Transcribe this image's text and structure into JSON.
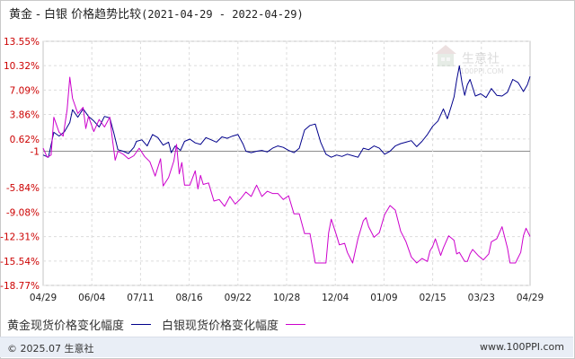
{
  "header": {
    "title": "黄金 - 白银 价格趋势比较",
    "date_range": "(2021-04-29 - 2022-04-29)"
  },
  "watermark": {
    "brand": "生意社",
    "url": "100PPI.COM"
  },
  "legend": [
    {
      "label": "黄金现货价格变化幅度",
      "color": "#00008b"
    },
    {
      "label": "白银现货价格变化幅度",
      "color": "#cc00cc"
    }
  ],
  "footer": {
    "copyright": "© 2025.07 生意社",
    "site": "www.100PPI.com"
  },
  "chart_data": {
    "type": "line",
    "x_tick_labels": [
      "04/29",
      "06/04",
      "07/11",
      "08/16",
      "09/22",
      "10/28",
      "12/04",
      "01/09",
      "02/15",
      "03/23",
      "04/29"
    ],
    "y_tick_labels": [
      "13.55%",
      "10.32%",
      "7.09%",
      "3.86%",
      "0.62%",
      "-1",
      "-5.84%",
      "-9.08%",
      "-12.31%",
      "-15.54%",
      "-18.77%"
    ],
    "y_tick_values": [
      13.55,
      10.32,
      7.09,
      3.86,
      0.62,
      -1,
      -5.84,
      -9.08,
      -12.31,
      -15.54,
      -18.77
    ],
    "ylim": [
      -18.77,
      13.55
    ],
    "xlim": [
      0,
      365
    ],
    "grid": true,
    "series": [
      {
        "name": "黄金现货价格变化幅度",
        "color": "#00008b",
        "points": [
          [
            0,
            -1.5
          ],
          [
            4,
            -1.8
          ],
          [
            8,
            1.5
          ],
          [
            12,
            1.0
          ],
          [
            16,
            1.6
          ],
          [
            20,
            2.8
          ],
          [
            22,
            4.5
          ],
          [
            26,
            3.5
          ],
          [
            30,
            4.6
          ],
          [
            34,
            3.6
          ],
          [
            38,
            3.0
          ],
          [
            42,
            2.2
          ],
          [
            46,
            3.6
          ],
          [
            50,
            3.4
          ],
          [
            53,
            1.4
          ],
          [
            56,
            -0.8
          ],
          [
            60,
            -1.0
          ],
          [
            64,
            -1.3
          ],
          [
            68,
            -0.5
          ],
          [
            70,
            0.3
          ],
          [
            74,
            0.5
          ],
          [
            78,
            -0.3
          ],
          [
            82,
            1.2
          ],
          [
            86,
            0.8
          ],
          [
            90,
            -0.2
          ],
          [
            94,
            0.2
          ],
          [
            96,
            -1.2
          ],
          [
            99,
            -0.3
          ],
          [
            103,
            -0.9
          ],
          [
            106,
            0.3
          ],
          [
            110,
            0.6
          ],
          [
            114,
            0.1
          ],
          [
            118,
            -0.1
          ],
          [
            122,
            0.8
          ],
          [
            126,
            0.5
          ],
          [
            130,
            0.2
          ],
          [
            134,
            0.9
          ],
          [
            138,
            0.7
          ],
          [
            142,
            1.0
          ],
          [
            146,
            1.2
          ],
          [
            150,
            -0.1
          ],
          [
            152,
            -1.0
          ],
          [
            156,
            -1.2
          ],
          [
            160,
            -1.0
          ],
          [
            164,
            -0.9
          ],
          [
            168,
            -1.1
          ],
          [
            172,
            -0.6
          ],
          [
            176,
            -0.3
          ],
          [
            180,
            -0.5
          ],
          [
            184,
            -0.9
          ],
          [
            188,
            -1.2
          ],
          [
            192,
            -0.6
          ],
          [
            196,
            1.8
          ],
          [
            200,
            2.4
          ],
          [
            204,
            2.6
          ],
          [
            208,
            0.2
          ],
          [
            212,
            -1.4
          ],
          [
            216,
            -1.8
          ],
          [
            220,
            -1.5
          ],
          [
            224,
            -1.7
          ],
          [
            228,
            -1.4
          ],
          [
            232,
            -1.6
          ],
          [
            236,
            -1.8
          ],
          [
            240,
            -0.6
          ],
          [
            244,
            -0.8
          ],
          [
            248,
            -0.3
          ],
          [
            252,
            -0.6
          ],
          [
            256,
            -1.4
          ],
          [
            260,
            -1.0
          ],
          [
            264,
            -0.3
          ],
          [
            268,
            0.0
          ],
          [
            272,
            0.2
          ],
          [
            276,
            0.4
          ],
          [
            280,
            -0.4
          ],
          [
            284,
            0.3
          ],
          [
            288,
            1.2
          ],
          [
            292,
            2.3
          ],
          [
            296,
            3.0
          ],
          [
            300,
            4.6
          ],
          [
            303,
            3.3
          ],
          [
            306,
            5.0
          ],
          [
            308,
            6.2
          ],
          [
            310,
            8.4
          ],
          [
            312,
            10.3
          ],
          [
            314,
            8.0
          ],
          [
            316,
            6.4
          ],
          [
            318,
            7.8
          ],
          [
            320,
            8.5
          ],
          [
            324,
            6.3
          ],
          [
            328,
            6.6
          ],
          [
            332,
            6.1
          ],
          [
            336,
            7.3
          ],
          [
            340,
            6.4
          ],
          [
            344,
            6.3
          ],
          [
            348,
            6.8
          ],
          [
            352,
            8.5
          ],
          [
            356,
            8.1
          ],
          [
            360,
            6.9
          ],
          [
            363,
            7.8
          ],
          [
            365,
            8.9
          ]
        ]
      },
      {
        "name": "白银现货价格变化幅度",
        "color": "#cc00cc",
        "points": [
          [
            0,
            -0.6
          ],
          [
            3,
            -1.8
          ],
          [
            6,
            -1.5
          ],
          [
            8,
            3.5
          ],
          [
            12,
            1.5
          ],
          [
            15,
            1.0
          ],
          [
            18,
            4.5
          ],
          [
            20,
            8.8
          ],
          [
            22,
            6.0
          ],
          [
            26,
            4.0
          ],
          [
            30,
            4.8
          ],
          [
            32,
            2.0
          ],
          [
            34,
            3.6
          ],
          [
            38,
            1.6
          ],
          [
            42,
            3.2
          ],
          [
            46,
            2.2
          ],
          [
            50,
            3.5
          ],
          [
            52,
            0.5
          ],
          [
            54,
            -2.2
          ],
          [
            56,
            -1.0
          ],
          [
            60,
            -1.4
          ],
          [
            64,
            -2.0
          ],
          [
            68,
            -1.6
          ],
          [
            72,
            -0.6
          ],
          [
            76,
            -1.7
          ],
          [
            80,
            -2.4
          ],
          [
            84,
            -4.3
          ],
          [
            88,
            -2.0
          ],
          [
            90,
            -5.6
          ],
          [
            94,
            -4.5
          ],
          [
            98,
            -2.3
          ],
          [
            100,
            -0.1
          ],
          [
            102,
            -4.0
          ],
          [
            104,
            -2.5
          ],
          [
            106,
            -5.5
          ],
          [
            110,
            -5.5
          ],
          [
            114,
            -3.6
          ],
          [
            116,
            -6.0
          ],
          [
            118,
            -4.2
          ],
          [
            120,
            -5.4
          ],
          [
            124,
            -5.2
          ],
          [
            128,
            -7.6
          ],
          [
            132,
            -7.4
          ],
          [
            136,
            -8.3
          ],
          [
            140,
            -7.0
          ],
          [
            144,
            -8.0
          ],
          [
            148,
            -7.3
          ],
          [
            152,
            -6.4
          ],
          [
            156,
            -7.0
          ],
          [
            160,
            -5.5
          ],
          [
            164,
            -7.0
          ],
          [
            168,
            -6.3
          ],
          [
            172,
            -6.6
          ],
          [
            176,
            -6.6
          ],
          [
            180,
            -7.4
          ],
          [
            184,
            -6.9
          ],
          [
            188,
            -9.3
          ],
          [
            192,
            -9.3
          ],
          [
            196,
            -11.9
          ],
          [
            200,
            -11.9
          ],
          [
            204,
            -15.8
          ],
          [
            208,
            -15.8
          ],
          [
            212,
            -15.8
          ],
          [
            214,
            -11.8
          ],
          [
            216,
            -10.0
          ],
          [
            220,
            -12.2
          ],
          [
            222,
            -13.4
          ],
          [
            226,
            -13.2
          ],
          [
            228,
            -14.4
          ],
          [
            232,
            -15.8
          ],
          [
            236,
            -12.6
          ],
          [
            240,
            -10.2
          ],
          [
            242,
            -9.8
          ],
          [
            244,
            -11.0
          ],
          [
            248,
            -12.4
          ],
          [
            252,
            -11.8
          ],
          [
            256,
            -9.4
          ],
          [
            260,
            -8.2
          ],
          [
            264,
            -8.8
          ],
          [
            268,
            -11.6
          ],
          [
            272,
            -13.0
          ],
          [
            276,
            -15.0
          ],
          [
            280,
            -15.8
          ],
          [
            284,
            -15.2
          ],
          [
            288,
            -15.6
          ],
          [
            290,
            -14.2
          ],
          [
            292,
            -13.6
          ],
          [
            294,
            -12.6
          ],
          [
            298,
            -14.8
          ],
          [
            300,
            -13.8
          ],
          [
            304,
            -12.2
          ],
          [
            308,
            -12.8
          ],
          [
            310,
            -14.6
          ],
          [
            312,
            -14.4
          ],
          [
            316,
            -15.6
          ],
          [
            318,
            -15.6
          ],
          [
            320,
            -14.6
          ],
          [
            322,
            -14.0
          ],
          [
            326,
            -14.8
          ],
          [
            330,
            -15.4
          ],
          [
            334,
            -14.6
          ],
          [
            336,
            -13.0
          ],
          [
            340,
            -12.6
          ],
          [
            344,
            -11.0
          ],
          [
            348,
            -13.8
          ],
          [
            350,
            -15.8
          ],
          [
            354,
            -15.8
          ],
          [
            358,
            -14.4
          ],
          [
            360,
            -12.2
          ],
          [
            362,
            -11.2
          ],
          [
            365,
            -12.3
          ]
        ]
      }
    ]
  }
}
